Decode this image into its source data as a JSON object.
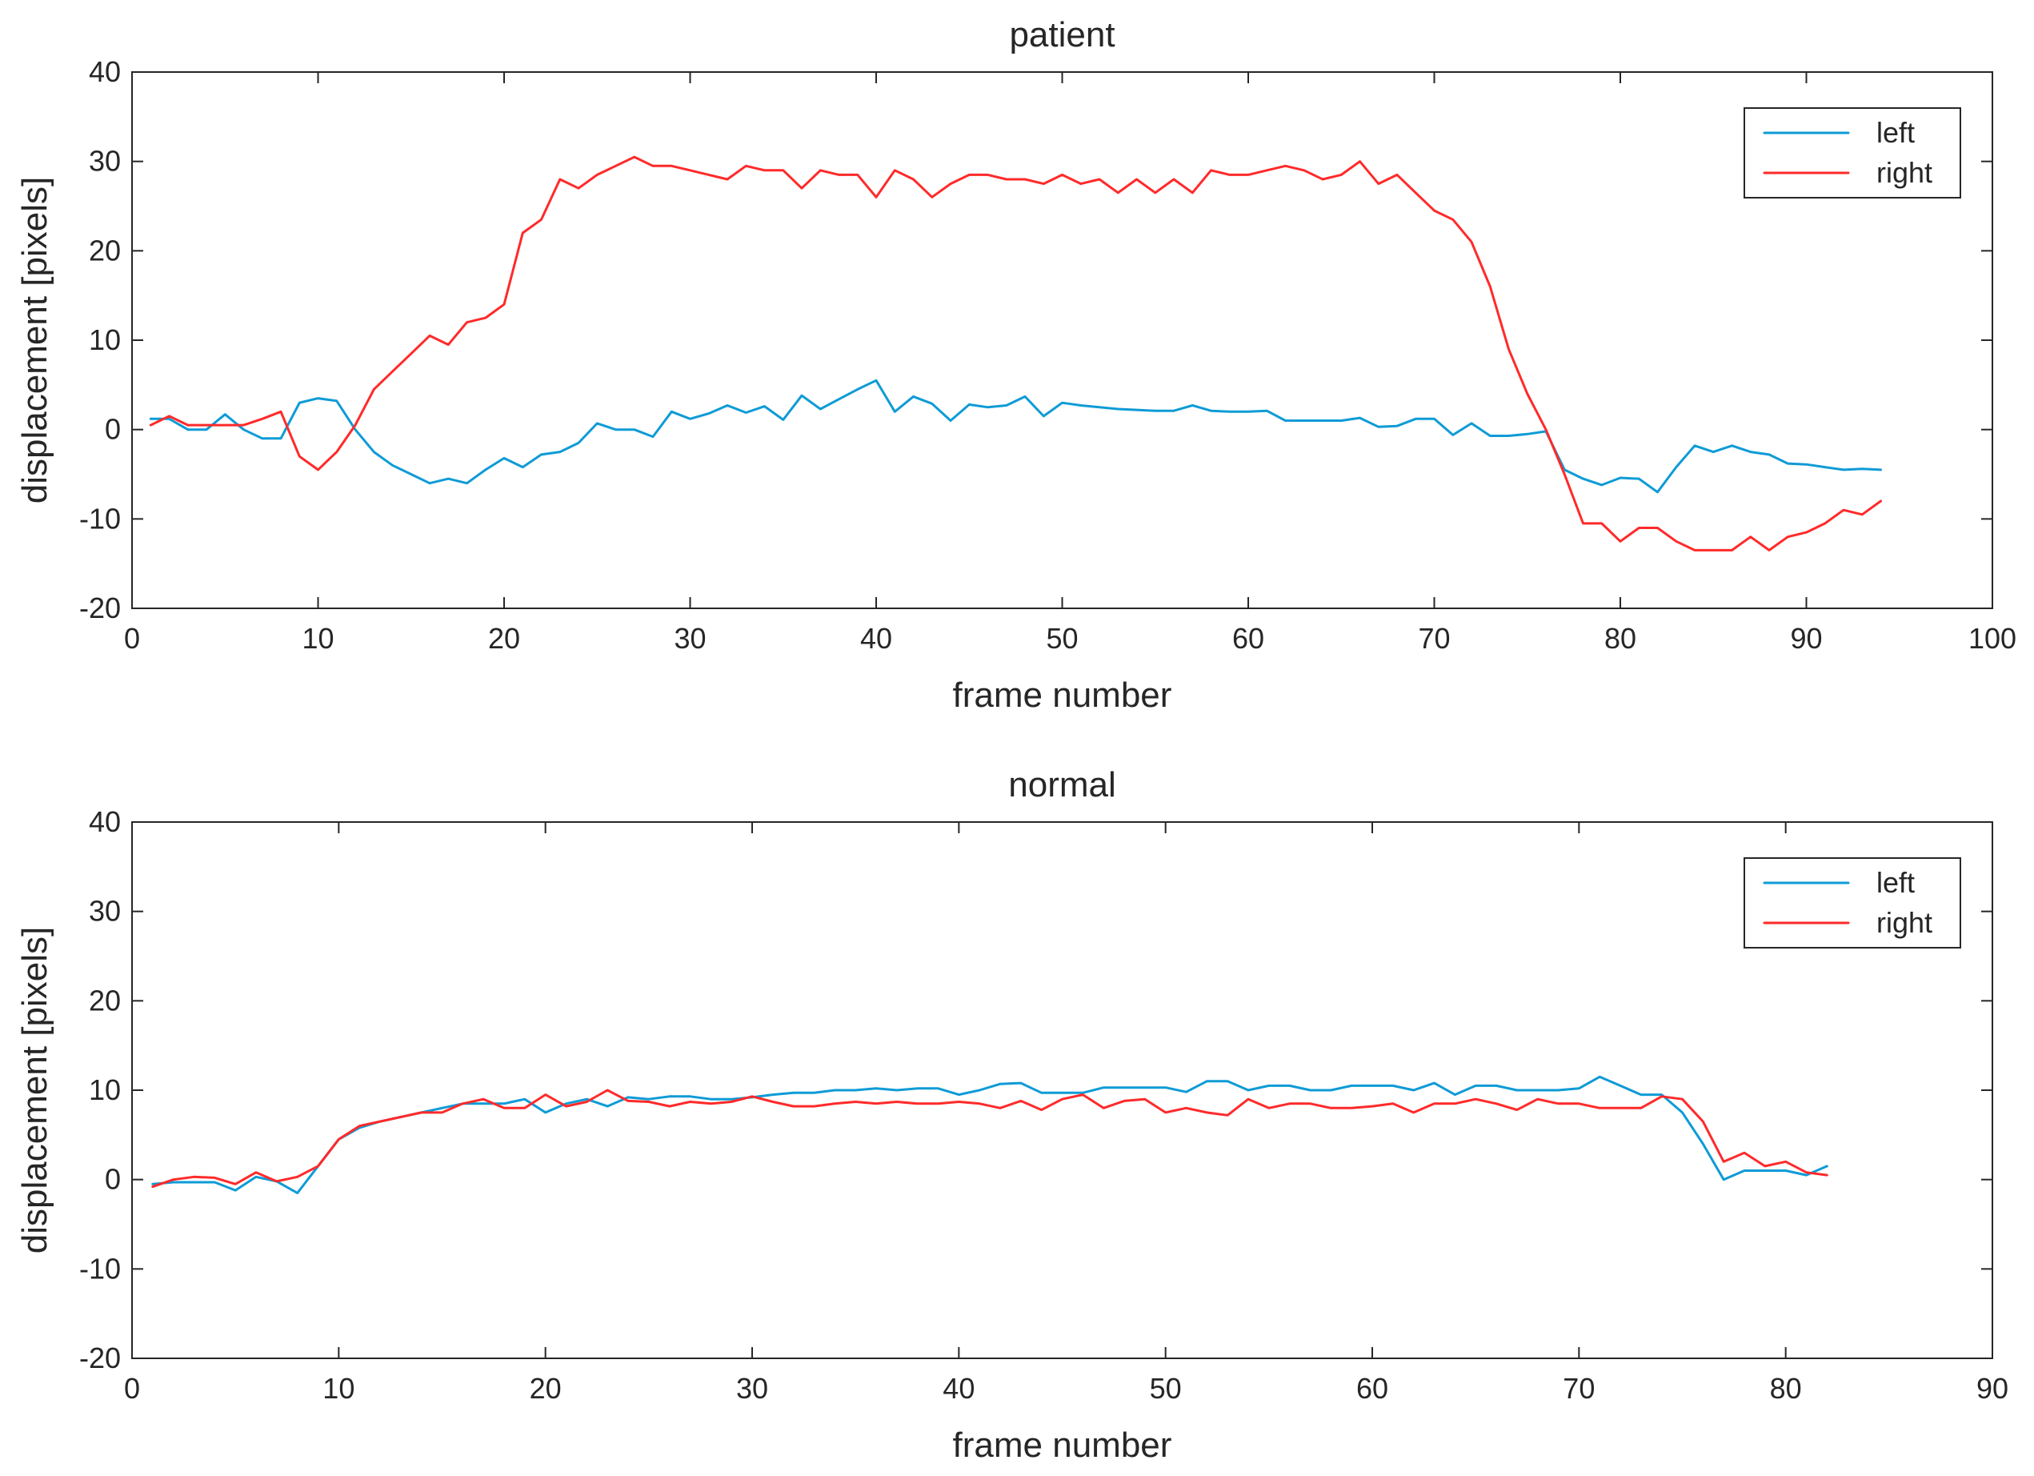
{
  "colors": {
    "left": "#0e9bd6",
    "right": "#ff2a2a"
  },
  "chart_data": [
    {
      "type": "line",
      "title": "patient",
      "xlabel": "frame number",
      "ylabel": "displacement [pixels]",
      "xlim": [
        0,
        100
      ],
      "ylim": [
        -20,
        40
      ],
      "xticks": [
        0,
        10,
        20,
        30,
        40,
        50,
        60,
        70,
        80,
        90,
        100
      ],
      "yticks": [
        -20,
        -10,
        0,
        10,
        20,
        30,
        40
      ],
      "grid": false,
      "legend": "top-right",
      "series": [
        {
          "name": "left",
          "color": "#0e9bd6",
          "x": [
            1,
            2,
            3,
            4,
            5,
            6,
            7,
            8,
            9,
            10,
            11,
            12,
            13,
            14,
            15,
            16,
            17,
            18,
            19,
            20,
            21,
            22,
            23,
            24,
            25,
            26,
            27,
            28,
            29,
            30,
            31,
            32,
            33,
            34,
            35,
            36,
            37,
            38,
            39,
            40,
            41,
            42,
            43,
            44,
            45,
            46,
            47,
            48,
            49,
            50,
            51,
            52,
            53,
            54,
            55,
            56,
            57,
            58,
            59,
            60,
            61,
            62,
            63,
            64,
            65,
            66,
            67,
            68,
            69,
            70,
            71,
            72,
            73,
            74,
            75,
            76,
            77,
            78,
            79,
            80,
            81,
            82,
            83,
            84,
            85,
            86,
            87,
            88,
            89,
            90,
            91,
            92,
            93,
            94
          ],
          "y": [
            1.2,
            1.2,
            0,
            0,
            1.7,
            0,
            -1,
            -1,
            3,
            3.5,
            3.2,
            0,
            -2.5,
            -4,
            -5,
            -6,
            -5.5,
            -6,
            -4.5,
            -3.2,
            -4.2,
            -2.8,
            -2.5,
            -1.5,
            0.7,
            0,
            0,
            -0.8,
            2,
            1.2,
            1.8,
            2.7,
            1.9,
            2.6,
            1.1,
            3.8,
            2.3,
            3.4,
            4.5,
            5.5,
            2,
            3.7,
            2.9,
            1,
            2.8,
            2.5,
            2.7,
            3.7,
            1.5,
            3,
            2.7,
            2.5,
            2.3,
            2.2,
            2.1,
            2.1,
            2.7,
            2.1,
            2,
            2,
            2.1,
            1,
            1,
            1,
            1,
            1.3,
            0.3,
            0.4,
            1.2,
            1.2,
            -0.6,
            0.7,
            -0.7,
            -0.7,
            -0.5,
            -0.2,
            -4.5,
            -5.5,
            -6.2,
            -5.4,
            -5.5,
            -7,
            -4.2,
            -1.8,
            -2.5,
            -1.8,
            -2.5,
            -2.8,
            -3.8,
            -3.9,
            -4.2,
            -4.5,
            -4.4,
            -4.5
          ]
        },
        {
          "name": "right",
          "color": "#ff2a2a",
          "x": [
            1,
            2,
            3,
            4,
            5,
            6,
            7,
            8,
            9,
            10,
            11,
            12,
            13,
            14,
            15,
            16,
            17,
            18,
            19,
            20,
            21,
            22,
            23,
            24,
            25,
            26,
            27,
            28,
            29,
            30,
            31,
            32,
            33,
            34,
            35,
            36,
            37,
            38,
            39,
            40,
            41,
            42,
            43,
            44,
            45,
            46,
            47,
            48,
            49,
            50,
            51,
            52,
            53,
            54,
            55,
            56,
            57,
            58,
            59,
            60,
            61,
            62,
            63,
            64,
            65,
            66,
            67,
            68,
            69,
            70,
            71,
            72,
            73,
            74,
            75,
            76,
            77,
            78,
            79,
            80,
            81,
            82,
            83,
            84,
            85,
            86,
            87,
            88,
            89,
            90,
            91,
            92,
            93,
            94
          ],
          "y": [
            0.5,
            1.5,
            0.5,
            0.5,
            0.5,
            0.5,
            1.2,
            2,
            -3,
            -4.5,
            -2.5,
            0.5,
            4.5,
            6.5,
            8.5,
            10.5,
            9.5,
            12,
            12.5,
            14,
            22,
            23.5,
            28,
            27,
            28.5,
            29.5,
            30.5,
            29.5,
            29.5,
            29,
            28.5,
            28,
            29.5,
            29,
            29,
            27,
            29,
            28.5,
            28.5,
            26,
            29,
            28,
            26,
            27.5,
            28.5,
            28.5,
            28,
            28,
            27.5,
            28.5,
            27.5,
            28,
            26.5,
            28,
            26.5,
            28,
            26.5,
            29,
            28.5,
            28.5,
            29,
            29.5,
            29,
            28,
            28.5,
            30,
            27.5,
            28.5,
            26.5,
            24.5,
            23.5,
            21,
            16,
            9,
            4,
            0,
            -5,
            -10.5,
            -10.5,
            -12.5,
            -11,
            -11,
            -12.5,
            -13.5,
            -13.5,
            -13.5,
            -12,
            -13.5,
            -12,
            -11.5,
            -10.5,
            -9,
            -9.5,
            -8
          ]
        }
      ]
    },
    {
      "type": "line",
      "title": "normal",
      "xlabel": "frame number",
      "ylabel": "displacement [pixels]",
      "xlim": [
        0,
        90
      ],
      "ylim": [
        -20,
        40
      ],
      "xticks": [
        0,
        10,
        20,
        30,
        40,
        50,
        60,
        70,
        80,
        90
      ],
      "yticks": [
        -20,
        -10,
        0,
        10,
        20,
        30,
        40
      ],
      "grid": false,
      "legend": "top-right",
      "series": [
        {
          "name": "left",
          "color": "#0e9bd6",
          "x": [
            1,
            2,
            3,
            4,
            5,
            6,
            7,
            8,
            9,
            10,
            11,
            12,
            13,
            14,
            15,
            16,
            17,
            18,
            19,
            20,
            21,
            22,
            23,
            24,
            25,
            26,
            27,
            28,
            29,
            30,
            31,
            32,
            33,
            34,
            35,
            36,
            37,
            38,
            39,
            40,
            41,
            42,
            43,
            44,
            45,
            46,
            47,
            48,
            49,
            50,
            51,
            52,
            53,
            54,
            55,
            56,
            57,
            58,
            59,
            60,
            61,
            62,
            63,
            64,
            65,
            66,
            67,
            68,
            69,
            70,
            71,
            72,
            73,
            74,
            75,
            76,
            77,
            78,
            79,
            80,
            81,
            82
          ],
          "y": [
            -0.5,
            -0.3,
            -0.3,
            -0.3,
            -1.2,
            0.3,
            -0.2,
            -1.5,
            1.5,
            4.5,
            5.8,
            6.5,
            7,
            7.5,
            8,
            8.5,
            8.5,
            8.5,
            9,
            7.5,
            8.5,
            9,
            8.2,
            9.2,
            9,
            9.3,
            9.3,
            9,
            9,
            9.2,
            9.5,
            9.7,
            9.7,
            10,
            10,
            10.2,
            10,
            10.2,
            10.2,
            9.5,
            10,
            10.7,
            10.8,
            9.7,
            9.7,
            9.7,
            10.3,
            10.3,
            10.3,
            10.3,
            9.8,
            11,
            11,
            10,
            10.5,
            10.5,
            10,
            10,
            10.5,
            10.5,
            10.5,
            10,
            10.8,
            9.5,
            10.5,
            10.5,
            10,
            10,
            10,
            10.2,
            11.5,
            10.5,
            9.5,
            9.5,
            7.5,
            4,
            0,
            1,
            1,
            1,
            0.5,
            1.5
          ]
        },
        {
          "name": "right",
          "color": "#ff2a2a",
          "x": [
            1,
            2,
            3,
            4,
            5,
            6,
            7,
            8,
            9,
            10,
            11,
            12,
            13,
            14,
            15,
            16,
            17,
            18,
            19,
            20,
            21,
            22,
            23,
            24,
            25,
            26,
            27,
            28,
            29,
            30,
            31,
            32,
            33,
            34,
            35,
            36,
            37,
            38,
            39,
            40,
            41,
            42,
            43,
            44,
            45,
            46,
            47,
            48,
            49,
            50,
            51,
            52,
            53,
            54,
            55,
            56,
            57,
            58,
            59,
            60,
            61,
            62,
            63,
            64,
            65,
            66,
            67,
            68,
            69,
            70,
            71,
            72,
            73,
            74,
            75,
            76,
            77,
            78,
            79,
            80,
            81,
            82
          ],
          "y": [
            -0.8,
            0,
            0.3,
            0.2,
            -0.5,
            0.8,
            -0.2,
            0.3,
            1.5,
            4.5,
            6,
            6.5,
            7,
            7.5,
            7.5,
            8.5,
            9,
            8,
            8,
            9.5,
            8.2,
            8.7,
            10,
            8.8,
            8.7,
            8.2,
            8.7,
            8.5,
            8.7,
            9.3,
            8.7,
            8.2,
            8.2,
            8.5,
            8.7,
            8.5,
            8.7,
            8.5,
            8.5,
            8.7,
            8.5,
            8,
            8.8,
            7.8,
            9,
            9.5,
            8,
            8.8,
            9,
            7.5,
            8,
            7.5,
            7.2,
            9,
            8,
            8.5,
            8.5,
            8,
            8,
            8.2,
            8.5,
            7.5,
            8.5,
            8.5,
            9,
            8.5,
            7.8,
            9,
            8.5,
            8.5,
            8,
            8,
            8,
            9.3,
            9,
            6.5,
            2,
            3,
            1.5,
            2,
            0.8,
            0.5
          ]
        }
      ]
    }
  ]
}
